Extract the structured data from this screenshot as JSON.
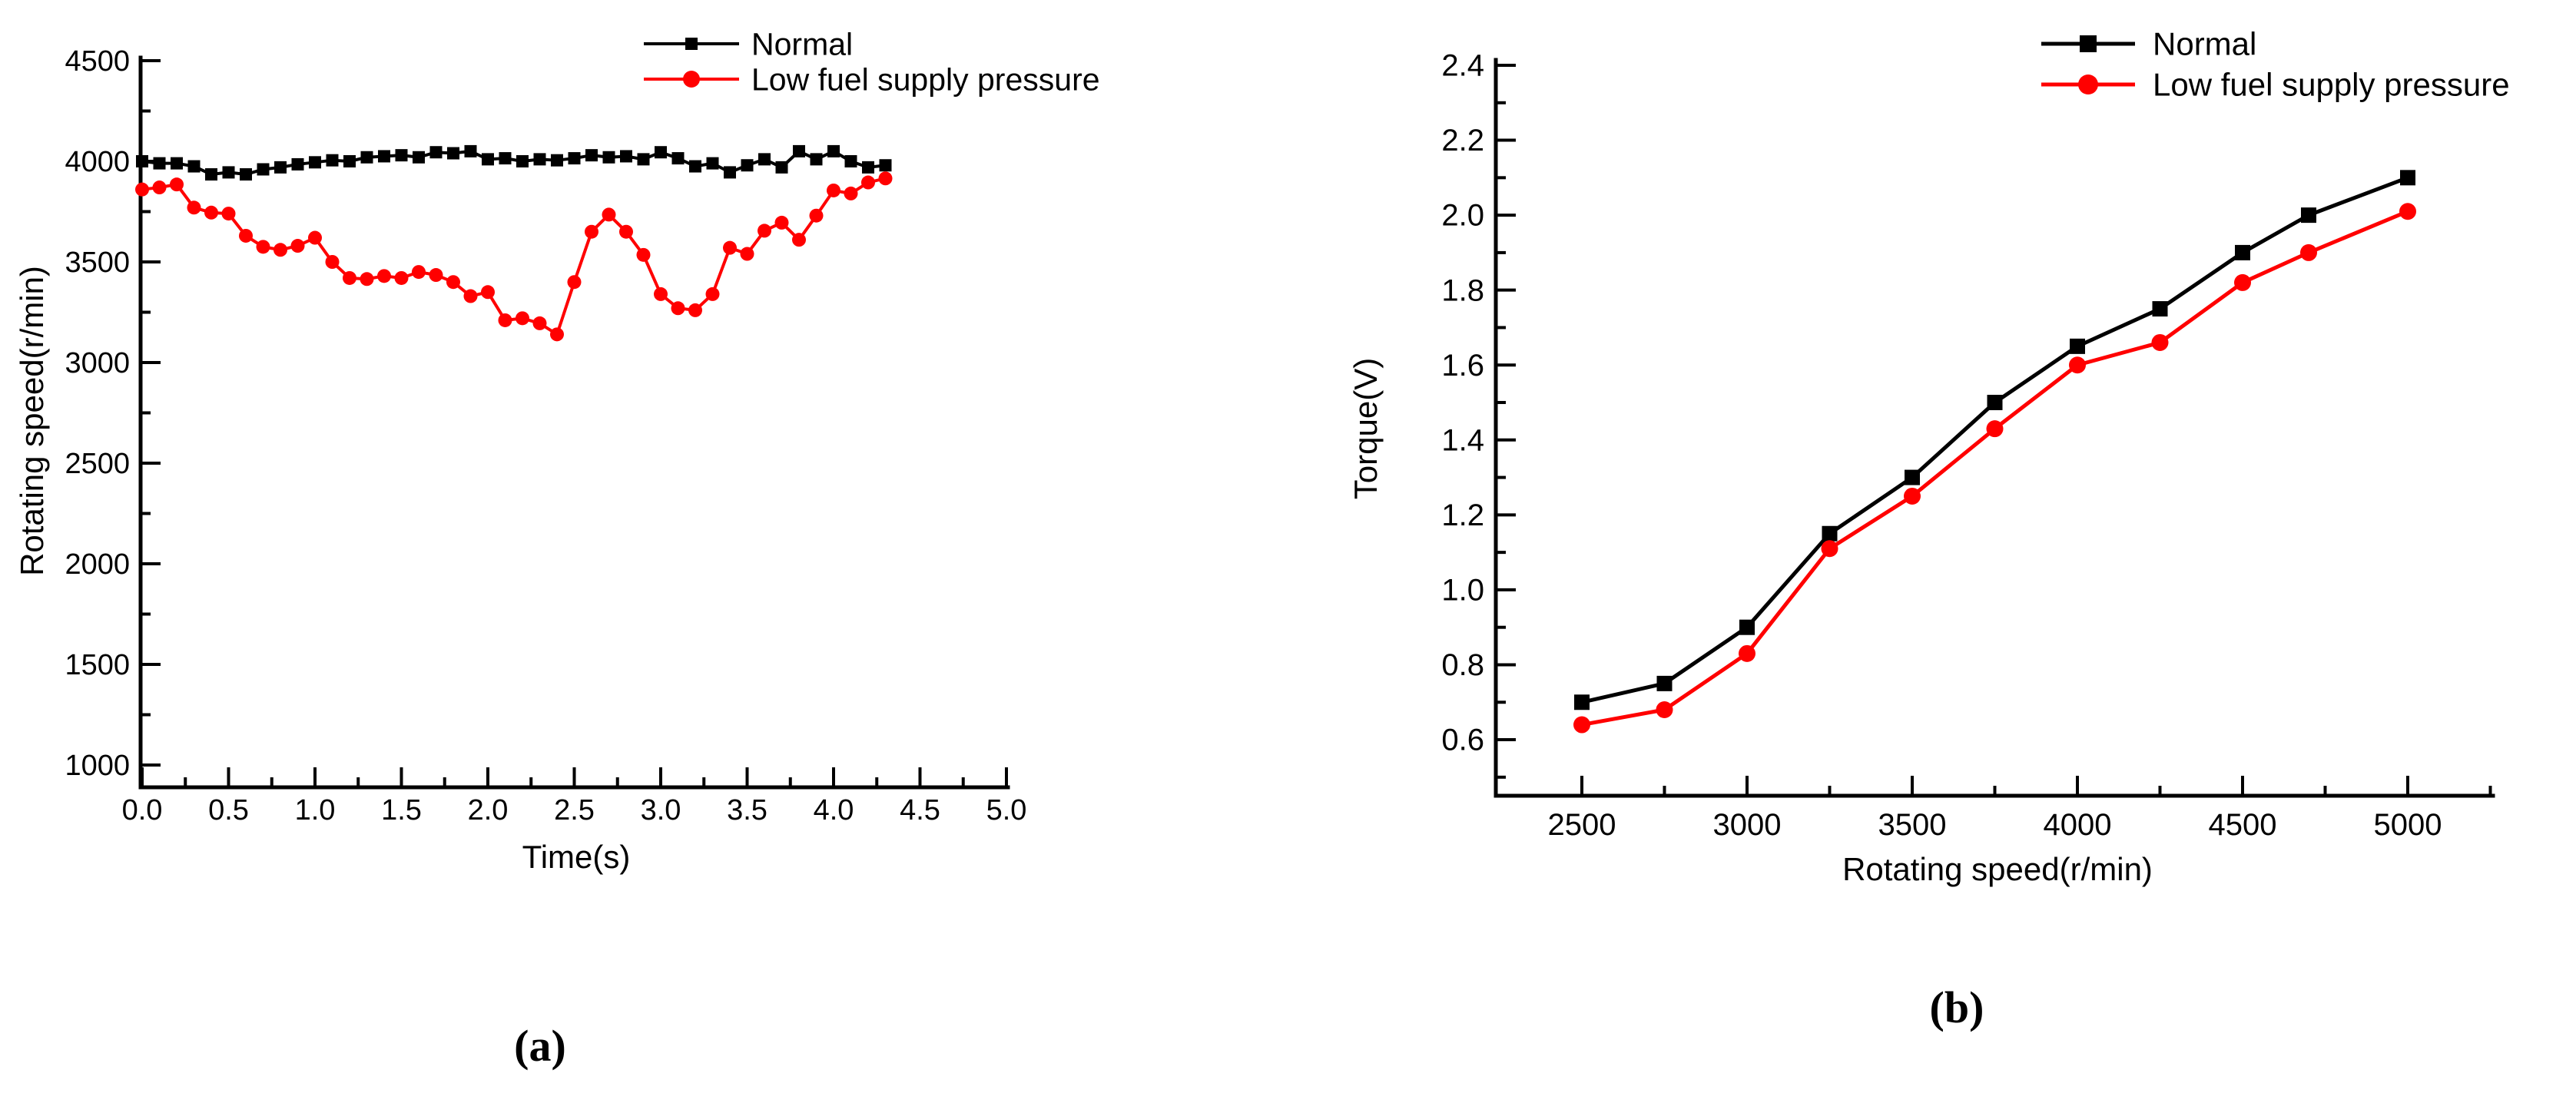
{
  "figure": {
    "background": "#ffffff"
  },
  "colors": {
    "normal_series": "#000000",
    "low_fuel_series": "#ff0000",
    "axis": "#000000"
  },
  "chart_data": [
    {
      "type": "line",
      "panel": "a",
      "caption": "(a)",
      "xlabel": "Time(s)",
      "ylabel": "Rotating speed(r/min)",
      "xlim": [
        0,
        5.15
      ],
      "ylim": [
        890,
        4510
      ],
      "grid": false,
      "legend_position": "top-center",
      "x_ticks": {
        "values": [
          0,
          0.5,
          1,
          1.5,
          2,
          2.5,
          3,
          3.5,
          4,
          4.5,
          5
        ],
        "labels": [
          "0.0",
          "0.5",
          "1.0",
          "1.5",
          "2.0",
          "2.5",
          "3.0",
          "3.5",
          "4.0",
          "4.5",
          "5.0"
        ],
        "minor": [
          0.25,
          0.75,
          1.25,
          1.75,
          2.25,
          2.75,
          3.25,
          3.75,
          4.25,
          4.75
        ]
      },
      "y_ticks": {
        "values": [
          1000,
          1500,
          2000,
          2500,
          3000,
          3500,
          4000,
          4500
        ],
        "labels": [
          "1000",
          "1500",
          "2000",
          "2500",
          "3000",
          "3500",
          "4000",
          "4500"
        ],
        "minor": [
          1250,
          1750,
          2250,
          2750,
          3250,
          3750,
          4250
        ]
      },
      "x": [
        0.0,
        0.1,
        0.2,
        0.3,
        0.4,
        0.5,
        0.6,
        0.7,
        0.8,
        0.9,
        1.0,
        1.1,
        1.2,
        1.3,
        1.4,
        1.5,
        1.6,
        1.7,
        1.8,
        1.9,
        2.0,
        2.1,
        2.2,
        2.3,
        2.4,
        2.5,
        2.6,
        2.7,
        2.8,
        2.9,
        3.0,
        3.1,
        3.2,
        3.3,
        3.4,
        3.5,
        3.6,
        3.7,
        3.8,
        3.9,
        4.0,
        4.1,
        4.2,
        4.3
      ],
      "series": [
        {
          "name": "Normal",
          "color": "#000000",
          "marker": "square",
          "values": [
            4000,
            3990,
            3990,
            3975,
            3935,
            3945,
            3935,
            3960,
            3970,
            3985,
            3995,
            4005,
            4000,
            4020,
            4025,
            4030,
            4020,
            4045,
            4040,
            4050,
            4010,
            4015,
            4000,
            4010,
            4005,
            4015,
            4030,
            4020,
            4025,
            4010,
            4045,
            4015,
            3975,
            3990,
            3945,
            3980,
            4010,
            3970,
            4050,
            4010,
            4050,
            4000,
            3970,
            3980
          ]
        },
        {
          "name": "Low fuel supply pressure",
          "color": "#ff0000",
          "marker": "circle",
          "values": [
            3860,
            3870,
            3885,
            3770,
            3745,
            3740,
            3630,
            3575,
            3560,
            3580,
            3620,
            3500,
            3420,
            3415,
            3430,
            3420,
            3450,
            3435,
            3400,
            3330,
            3350,
            3210,
            3220,
            3195,
            3140,
            3400,
            3650,
            3735,
            3650,
            3535,
            3340,
            3270,
            3260,
            3340,
            3570,
            3540,
            3655,
            3695,
            3610,
            3730,
            3855,
            3840,
            3895,
            3915
          ]
        }
      ]
    },
    {
      "type": "line",
      "panel": "b",
      "caption": "(b)",
      "xlabel": "Rotating speed(r/min)",
      "ylabel": "Torque(V)",
      "xlim": [
        2240,
        5260
      ],
      "ylim": [
        0.46,
        2.42
      ],
      "grid": false,
      "legend_position": "top-center",
      "x_ticks": {
        "values": [
          2500,
          3000,
          3500,
          4000,
          4500,
          5000
        ],
        "labels": [
          "2500",
          "3000",
          "3500",
          "4000",
          "4500",
          "5000"
        ],
        "minor": [
          2750,
          3250,
          3750,
          4250,
          4750,
          5250
        ]
      },
      "y_ticks": {
        "values": [
          0.6,
          0.8,
          1.0,
          1.2,
          1.4,
          1.6,
          1.8,
          2.0,
          2.2,
          2.4
        ],
        "labels": [
          "0.6",
          "0.8",
          "1.0",
          "1.2",
          "1.4",
          "1.6",
          "1.8",
          "2.0",
          "2.2",
          "2.4"
        ],
        "minor": [
          0.5,
          0.7,
          0.9,
          1.1,
          1.3,
          1.5,
          1.7,
          1.9,
          2.1,
          2.3
        ]
      },
      "x": [
        2500,
        2750,
        3000,
        3250,
        3500,
        3750,
        4000,
        4250,
        4500,
        4700,
        5000
      ],
      "series": [
        {
          "name": "Normal",
          "color": "#000000",
          "marker": "square",
          "values": [
            0.7,
            0.75,
            0.9,
            1.15,
            1.3,
            1.5,
            1.65,
            1.75,
            1.9,
            2.0,
            2.1
          ]
        },
        {
          "name": "Low fuel supply pressure",
          "color": "#ff0000",
          "marker": "circle",
          "values": [
            0.64,
            0.68,
            0.83,
            1.11,
            1.25,
            1.43,
            1.6,
            1.66,
            1.82,
            1.9,
            2.01
          ]
        }
      ]
    }
  ]
}
